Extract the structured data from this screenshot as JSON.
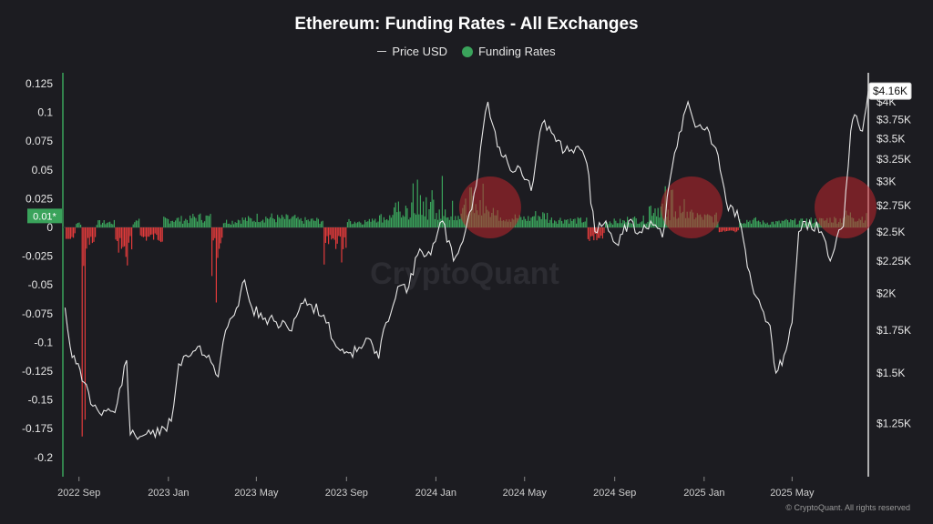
{
  "title": "Ethereum: Funding Rates - All Exchanges",
  "legend": {
    "price_label": "Price USD",
    "funding_label": "Funding Rates"
  },
  "watermark": "CryptoQuant",
  "copyright": "© CryptoQuant. All rights reserved",
  "colors": {
    "background": "#1c1c21",
    "price_line": "#e8e8e8",
    "funding_positive": "#3aa35b",
    "funding_negative": "#e23b3b",
    "highlight": "#c0262d"
  },
  "chart_data": {
    "type": "line",
    "title": "Ethereum: Funding Rates - All Exchanges",
    "x_axis": {
      "ticks": [
        "2022 Sep",
        "2023 Jan",
        "2023 May",
        "2023 Sep",
        "2024 Jan",
        "2024 May",
        "2024 Sep",
        "2025 Jan",
        "2025 May"
      ],
      "range": [
        "2022-08-10",
        "2025-08-13"
      ]
    },
    "y_left": {
      "label": "Funding Rates",
      "ticks": [
        "0.125",
        "0.1",
        "0.075",
        "0.05",
        "0.025",
        "0",
        "-0.025",
        "-0.05",
        "-0.075",
        "-0.1",
        "-0.125",
        "-0.15",
        "-0.175",
        "-0.2"
      ],
      "range": [
        -0.2,
        0.125
      ],
      "current_marker": "0.01*"
    },
    "y_right": {
      "label": "Price USD",
      "ticks": [
        "$4K",
        "$3.75K",
        "$3.5K",
        "$3.25K",
        "$3K",
        "$2.75K",
        "$2.5K",
        "$2.25K",
        "$2K",
        "$1.75K",
        "$1.5K",
        "$1.25K"
      ],
      "scale": "log",
      "current_marker": "$4.16K"
    },
    "grid": false,
    "legend_position": "top-center",
    "price_series": {
      "name": "Price USD",
      "x": [
        "2022-08-13",
        "2022-08-20",
        "2022-08-28",
        "2022-09-08",
        "2022-09-20",
        "2022-10-05",
        "2022-10-20",
        "2022-11-05",
        "2022-11-10",
        "2022-11-20",
        "2022-12-05",
        "2022-12-20",
        "2023-01-05",
        "2023-01-15",
        "2023-01-25",
        "2023-02-10",
        "2023-02-25",
        "2023-03-10",
        "2023-03-20",
        "2023-04-01",
        "2023-04-15",
        "2023-04-25",
        "2023-05-10",
        "2023-05-25",
        "2023-06-15",
        "2023-07-01",
        "2023-07-15",
        "2023-08-01",
        "2023-08-18",
        "2023-09-01",
        "2023-09-15",
        "2023-10-01",
        "2023-10-15",
        "2023-10-25",
        "2023-11-10",
        "2023-11-25",
        "2023-12-10",
        "2023-12-25",
        "2024-01-10",
        "2024-01-25",
        "2024-02-10",
        "2024-02-25",
        "2024-03-05",
        "2024-03-12",
        "2024-03-25",
        "2024-04-05",
        "2024-04-15",
        "2024-04-25",
        "2024-05-10",
        "2024-05-25",
        "2024-06-10",
        "2024-06-25",
        "2024-07-10",
        "2024-07-25",
        "2024-08-05",
        "2024-08-20",
        "2024-09-06",
        "2024-09-20",
        "2024-10-05",
        "2024-10-20",
        "2024-11-05",
        "2024-11-15",
        "2024-11-25",
        "2024-12-10",
        "2024-12-20",
        "2025-01-05",
        "2025-01-20",
        "2025-02-03",
        "2025-02-15",
        "2025-03-01",
        "2025-03-10",
        "2025-03-20",
        "2025-04-01",
        "2025-04-09",
        "2025-04-20",
        "2025-05-01",
        "2025-05-10",
        "2025-05-25",
        "2025-06-10",
        "2025-06-22",
        "2025-07-01",
        "2025-07-10",
        "2025-07-20",
        "2025-07-28",
        "2025-08-05",
        "2025-08-13"
      ],
      "y": [
        1900,
        1650,
        1550,
        1450,
        1330,
        1310,
        1300,
        1570,
        1200,
        1180,
        1220,
        1200,
        1260,
        1550,
        1600,
        1650,
        1600,
        1480,
        1750,
        1850,
        2100,
        1900,
        1820,
        1810,
        1750,
        1930,
        1920,
        1850,
        1650,
        1620,
        1620,
        1700,
        1580,
        1800,
        2050,
        2050,
        2350,
        2300,
        2600,
        2250,
        2500,
        2950,
        3600,
        4000,
        3400,
        3300,
        3100,
        3150,
        2900,
        3700,
        3550,
        3350,
        3400,
        3200,
        2500,
        2600,
        2380,
        2600,
        2500,
        2600,
        2450,
        3000,
        3400,
        4000,
        3650,
        3650,
        3300,
        2700,
        2700,
        2200,
        2000,
        1900,
        1780,
        1500,
        1600,
        1800,
        2500,
        2600,
        2500,
        2250,
        2450,
        2550,
        3600,
        3800,
        3600,
        4160
      ]
    },
    "funding_series": {
      "name": "Funding Rates",
      "x": [
        "2022-08-20",
        "2022-09-01",
        "2022-09-07",
        "2022-09-15",
        "2022-10-01",
        "2022-11-08",
        "2022-11-15",
        "2022-12-01",
        "2023-01-15",
        "2023-02-15",
        "2023-03-12",
        "2023-03-20",
        "2023-04-15",
        "2023-05-10",
        "2023-06-05",
        "2023-07-15",
        "2023-08-17",
        "2023-09-15",
        "2023-10-20",
        "2023-11-15",
        "2023-12-05",
        "2023-12-20",
        "2024-01-10",
        "2024-02-01",
        "2024-02-20",
        "2024-03-01",
        "2024-03-10",
        "2024-03-15",
        "2024-03-25",
        "2024-04-10",
        "2024-05-01",
        "2024-05-20",
        "2024-06-15",
        "2024-07-15",
        "2024-08-05",
        "2024-09-01",
        "2024-10-01",
        "2024-11-01",
        "2024-11-15",
        "2024-11-25",
        "2024-12-05",
        "2024-12-15",
        "2025-01-05",
        "2025-02-03",
        "2025-03-01",
        "2025-04-01",
        "2025-05-01",
        "2025-06-01",
        "2025-07-01",
        "2025-07-15",
        "2025-08-01",
        "2025-08-13"
      ],
      "y": [
        -0.01,
        0.005,
        -0.2,
        -0.015,
        0.005,
        -0.06,
        0.006,
        -0.01,
        0.008,
        0.01,
        -0.1,
        0.006,
        0.008,
        0.01,
        0.009,
        0.007,
        -0.025,
        0.006,
        0.01,
        0.018,
        0.04,
        0.03,
        0.035,
        0.025,
        0.03,
        0.05,
        0.03,
        0.02,
        0.012,
        0.01,
        0.009,
        0.012,
        0.008,
        0.007,
        -0.01,
        0.006,
        0.008,
        0.02,
        0.03,
        0.025,
        0.02,
        0.012,
        0.01,
        -0.005,
        0.007,
        0.005,
        0.006,
        0.007,
        0.008,
        0.012,
        0.01,
        0.01
      ]
    },
    "highlights": [
      "2024-03",
      "2024-12",
      "2025-08"
    ]
  }
}
